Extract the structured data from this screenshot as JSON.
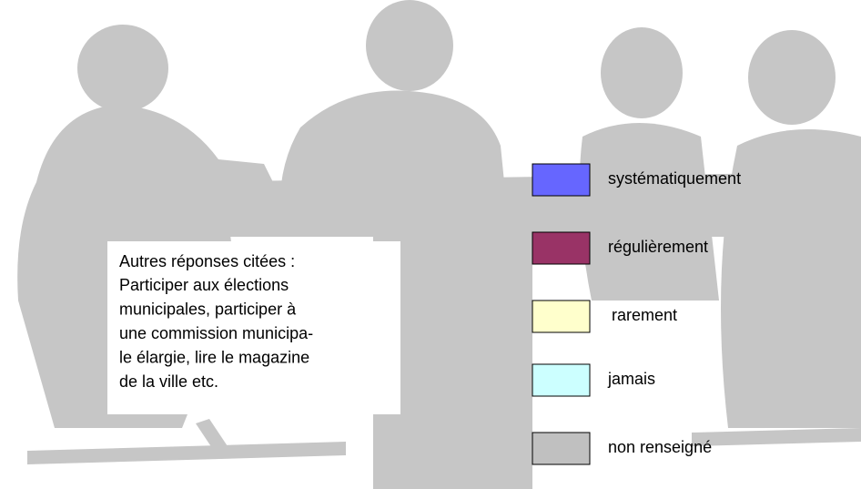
{
  "note": {
    "lines": [
      "Autres réponses citées :",
      "Participer aux élections",
      "municipales, participer à",
      "une commission municipa-",
      "le élargie, lire le magazine",
      "de la ville etc."
    ]
  },
  "legend": {
    "items": [
      {
        "label": "systématiquement",
        "color": "#6666ff"
      },
      {
        "label": "régulièrement",
        "color": "#993366"
      },
      {
        "label": "rarement",
        "color": "#ffffcc"
      },
      {
        "label": "jamais",
        "color": "#ccffff"
      },
      {
        "label": "non renseigné",
        "color": "#c0c0c0"
      }
    ]
  }
}
